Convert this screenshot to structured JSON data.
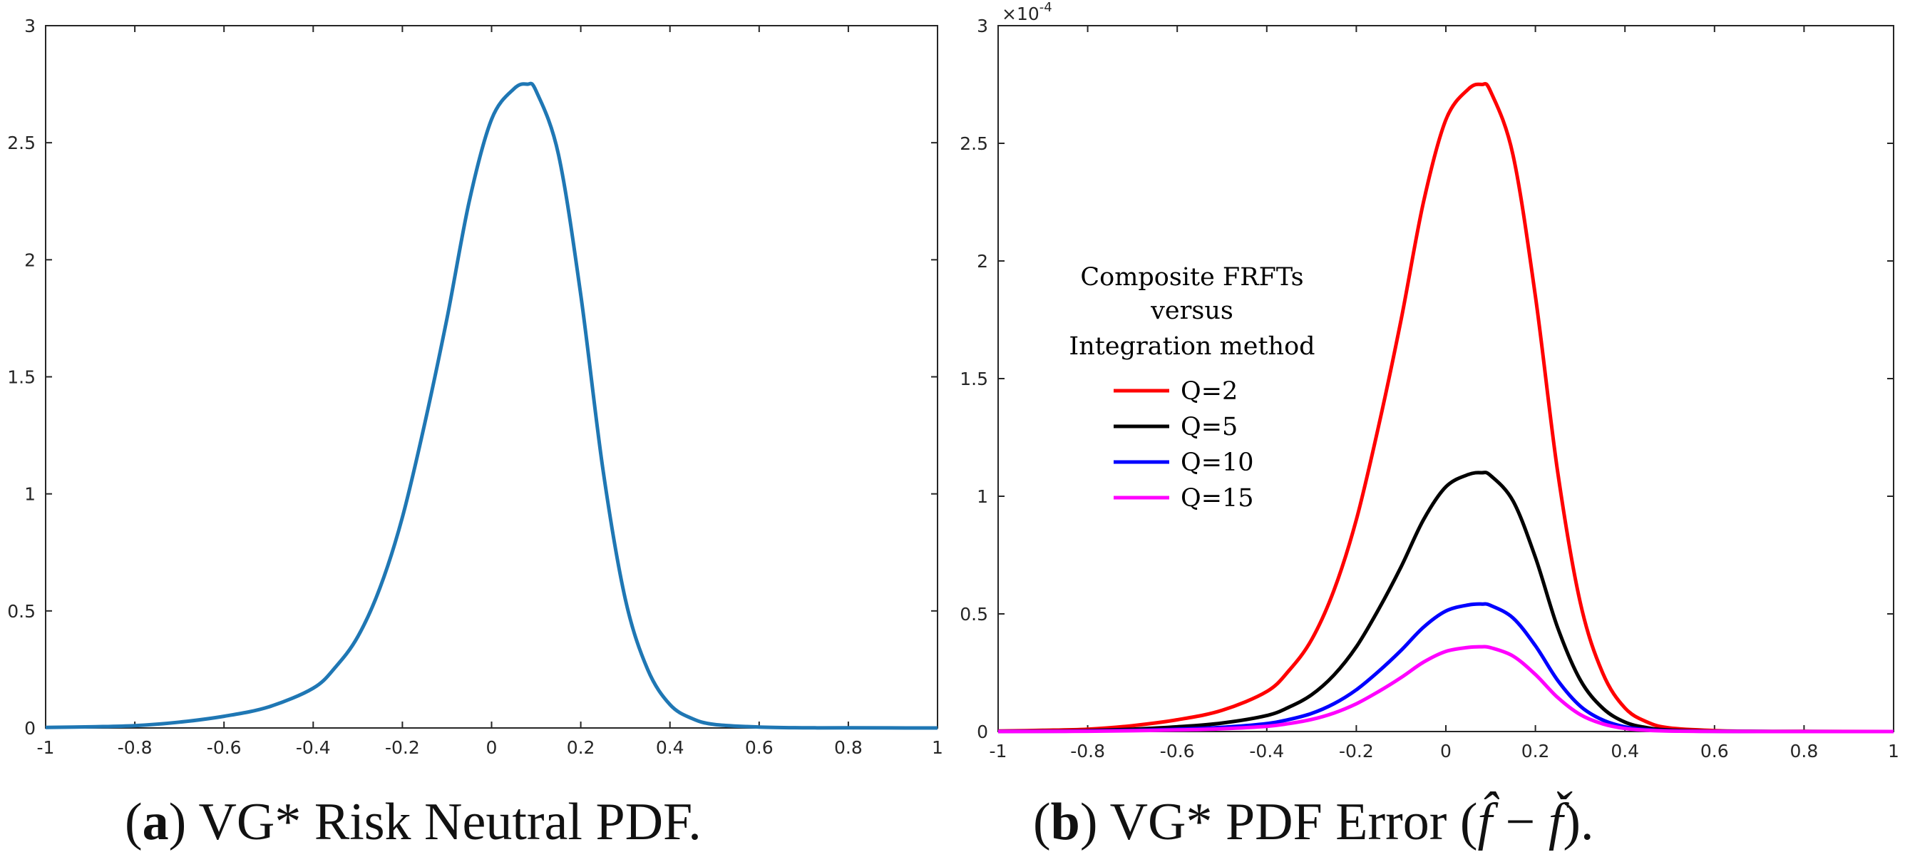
{
  "chart_data": [
    {
      "type": "line",
      "panel": "a",
      "caption": {
        "letter": "a",
        "text": "VG* Risk Neutral PDF."
      },
      "xlim": [
        -1,
        1
      ],
      "ylim": [
        0,
        3
      ],
      "x_ticks": [
        -1,
        -0.8,
        -0.6,
        -0.4,
        -0.2,
        0,
        0.2,
        0.4,
        0.6,
        0.8,
        1
      ],
      "x_tick_labels": [
        "-1",
        "-0.8",
        "-0.6",
        "-0.4",
        "-0.2",
        "0",
        "0.2",
        "0.4",
        "0.6",
        "0.8",
        "1"
      ],
      "y_ticks": [
        0,
        0.5,
        1,
        1.5,
        2,
        2.5,
        3
      ],
      "y_tick_labels": [
        "0",
        "0.5",
        "1",
        "1.5",
        "2",
        "2.5",
        "3"
      ],
      "series": [
        {
          "name": "VG* PDF",
          "color": "#1f77b4",
          "x": [
            -1,
            -0.9,
            -0.8,
            -0.7,
            -0.6,
            -0.5,
            -0.4,
            -0.35,
            -0.3,
            -0.25,
            -0.2,
            -0.15,
            -0.1,
            -0.05,
            0,
            0.05,
            0.08,
            0.1,
            0.15,
            0.2,
            0.25,
            0.3,
            0.35,
            0.4,
            0.45,
            0.5,
            0.6,
            0.7,
            0.8,
            1
          ],
          "y": [
            0.002,
            0.005,
            0.01,
            0.025,
            0.05,
            0.09,
            0.17,
            0.26,
            0.39,
            0.6,
            0.9,
            1.3,
            1.75,
            2.25,
            2.6,
            2.73,
            2.75,
            2.72,
            2.45,
            1.85,
            1.1,
            0.55,
            0.25,
            0.1,
            0.04,
            0.015,
            0.004,
            0.001,
            0.0005,
            0
          ]
        }
      ]
    },
    {
      "type": "line",
      "panel": "b",
      "caption": {
        "letter": "b",
        "text": "VG* PDF Error"
      },
      "xlim": [
        -1,
        1
      ],
      "ylim": [
        0,
        3
      ],
      "y_scale_label": "×10",
      "y_scale_exponent": "-4",
      "x_ticks": [
        -1,
        -0.8,
        -0.6,
        -0.4,
        -0.2,
        0,
        0.2,
        0.4,
        0.6,
        0.8,
        1
      ],
      "x_tick_labels": [
        "-1",
        "-0.8",
        "-0.6",
        "-0.4",
        "-0.2",
        "0",
        "0.2",
        "0.4",
        "0.6",
        "0.8",
        "1"
      ],
      "y_ticks": [
        0,
        0.5,
        1,
        1.5,
        2,
        2.5,
        3
      ],
      "y_tick_labels": [
        "0",
        "0.5",
        "1",
        "1.5",
        "2",
        "2.5",
        "3"
      ],
      "legend": {
        "title": [
          "Composite FRFTs",
          "versus",
          "Integration method"
        ],
        "location": "center-left"
      },
      "series": [
        {
          "name": "Q=2",
          "color": "#ff0000",
          "scale": 1.0
        },
        {
          "name": "Q=5",
          "color": "#000000",
          "scale": 0.4
        },
        {
          "name": "Q=10",
          "color": "#0000ff",
          "scale": 0.197
        },
        {
          "name": "Q=15",
          "color": "#ff00ff",
          "scale": 0.131
        }
      ],
      "base_shape": {
        "x": [
          -1,
          -0.9,
          -0.8,
          -0.7,
          -0.6,
          -0.5,
          -0.4,
          -0.35,
          -0.3,
          -0.25,
          -0.2,
          -0.15,
          -0.1,
          -0.05,
          0,
          0.05,
          0.08,
          0.1,
          0.15,
          0.2,
          0.25,
          0.3,
          0.35,
          0.4,
          0.45,
          0.5,
          0.6,
          0.7,
          0.8,
          1
        ],
        "y": [
          0.002,
          0.005,
          0.01,
          0.025,
          0.05,
          0.09,
          0.17,
          0.26,
          0.39,
          0.6,
          0.9,
          1.3,
          1.75,
          2.25,
          2.6,
          2.73,
          2.75,
          2.72,
          2.45,
          1.85,
          1.1,
          0.55,
          0.25,
          0.1,
          0.04,
          0.015,
          0.004,
          0.001,
          0.0005,
          0
        ]
      }
    }
  ],
  "captions": {
    "a_open": "(",
    "a_letter": "a",
    "a_text": ") VG* Risk Neutral PDF.",
    "b_open": "(",
    "b_letter": "b",
    "b_text": ") VG* PDF Error (",
    "b_fhat": "f̂",
    "b_minus": " − ",
    "b_fcheck": "f̌",
    "b_close": ")."
  }
}
